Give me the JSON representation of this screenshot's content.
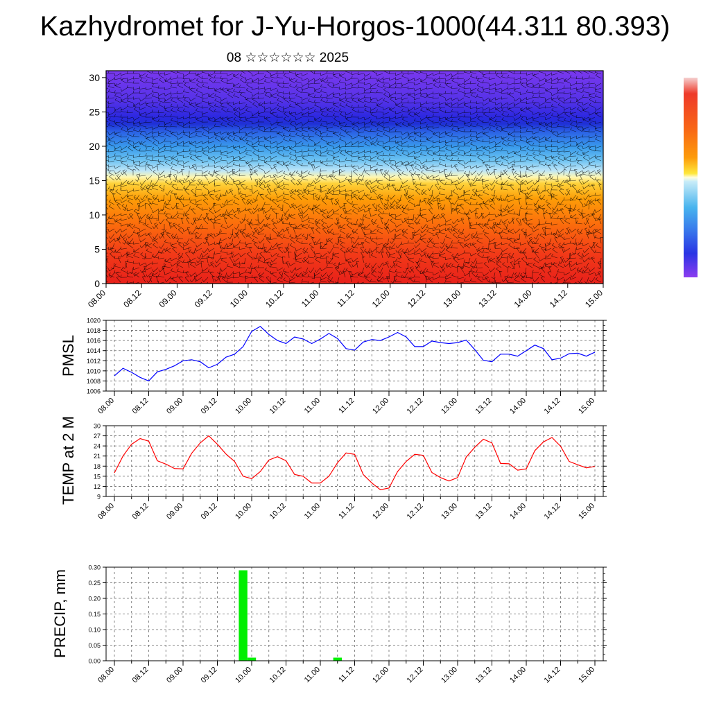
{
  "header": {
    "title": "Kazhydromet for J-Yu-Horgos-1000(44.311 80.393)",
    "subtitle": "08 ☆☆☆☆☆☆ 2025"
  },
  "time_labels": [
    "08.00",
    "08.12",
    "09.00",
    "09.12",
    "10.00",
    "10.12",
    "11.00",
    "11.12",
    "12.00",
    "12.12",
    "13.00",
    "13.12",
    "14.00",
    "14.12",
    "15.00"
  ],
  "colors": {
    "pmsl_line": "#0000ff",
    "temp_line": "#ff0000",
    "precip_bar": "#00ee00",
    "grid": "#666666"
  },
  "chart_data": [
    {
      "type": "heatmap",
      "name": "cross-section",
      "x_ticks": [
        "08.00",
        "08.12",
        "09.00",
        "09.12",
        "10.00",
        "10.12",
        "11.00",
        "11.12",
        "12.00",
        "12.12",
        "13.00",
        "13.12",
        "14.00",
        "14.12",
        "15.00"
      ],
      "y_ticks": [
        0,
        5,
        10,
        15,
        20,
        25,
        30
      ],
      "ylim": [
        0,
        31
      ],
      "colorscale": [
        "#ef2a1c",
        "#fe8a09",
        "#fee040",
        "#a6e0f5",
        "#3aa6ee",
        "#2050ec",
        "#7530f0"
      ],
      "colorbar_position": "right",
      "overlay": "wind barbs"
    },
    {
      "type": "line",
      "name": "pmsl",
      "ylabel": "PMSL",
      "ylim": [
        1006,
        1020
      ],
      "y_ticks": [
        1006,
        1008,
        1010,
        1012,
        1014,
        1016,
        1018,
        1020
      ],
      "x": [
        "08.00",
        "08.03",
        "08.06",
        "08.09",
        "08.12",
        "08.15",
        "08.18",
        "08.21",
        "09.00",
        "09.03",
        "09.06",
        "09.09",
        "09.12",
        "09.15",
        "09.18",
        "09.21",
        "10.00",
        "10.03",
        "10.06",
        "10.09",
        "10.12",
        "10.15",
        "10.18",
        "10.21",
        "11.00",
        "11.03",
        "11.06",
        "11.09",
        "11.12",
        "11.15",
        "11.18",
        "11.21",
        "12.00",
        "12.03",
        "12.06",
        "12.09",
        "12.12",
        "12.15",
        "12.18",
        "12.21",
        "13.00",
        "13.03",
        "13.06",
        "13.09",
        "13.12",
        "13.15",
        "13.18",
        "13.21",
        "14.00",
        "14.03",
        "14.06",
        "14.09",
        "14.12",
        "14.15",
        "14.18",
        "14.21",
        "15.00"
      ],
      "values": [
        1009.0,
        1010.5,
        1009.7,
        1008.7,
        1008.0,
        1009.8,
        1010.3,
        1011.0,
        1012.0,
        1012.2,
        1011.8,
        1010.6,
        1011.3,
        1012.7,
        1013.3,
        1014.8,
        1017.8,
        1018.8,
        1017.2,
        1016.0,
        1015.4,
        1016.7,
        1016.3,
        1015.4,
        1016.3,
        1017.4,
        1016.4,
        1014.4,
        1014.1,
        1015.7,
        1016.2,
        1016.0,
        1016.7,
        1017.6,
        1016.7,
        1014.8,
        1014.8,
        1015.9,
        1015.6,
        1015.4,
        1015.6,
        1016.1,
        1014.2,
        1012.1,
        1011.8,
        1013.3,
        1013.3,
        1012.9,
        1014.0,
        1015.1,
        1014.4,
        1012.2,
        1012.5,
        1013.4,
        1013.5,
        1012.9,
        1013.7
      ]
    },
    {
      "type": "line",
      "name": "temp",
      "ylabel": "TEMP at 2 M",
      "ylim": [
        9,
        30
      ],
      "y_ticks": [
        9,
        12,
        15,
        18,
        21,
        24,
        27,
        30
      ],
      "x": [
        "08.00",
        "08.03",
        "08.06",
        "08.09",
        "08.12",
        "08.15",
        "08.18",
        "08.21",
        "09.00",
        "09.03",
        "09.06",
        "09.09",
        "09.12",
        "09.15",
        "09.18",
        "09.21",
        "10.00",
        "10.03",
        "10.06",
        "10.09",
        "10.12",
        "10.15",
        "10.18",
        "10.21",
        "11.00",
        "11.03",
        "11.06",
        "11.09",
        "11.12",
        "11.15",
        "11.18",
        "11.21",
        "12.00",
        "12.03",
        "12.06",
        "12.09",
        "12.12",
        "12.15",
        "12.18",
        "12.21",
        "13.00",
        "13.03",
        "13.06",
        "13.09",
        "13.12",
        "13.15",
        "13.18",
        "13.21",
        "14.00",
        "14.03",
        "14.06",
        "14.09",
        "14.12",
        "14.15",
        "14.18",
        "14.21",
        "15.00"
      ],
      "values": [
        16.0,
        21.0,
        24.5,
        26.2,
        25.4,
        19.6,
        18.6,
        17.3,
        17.2,
        21.8,
        24.9,
        27.0,
        24.5,
        21.6,
        19.4,
        15.0,
        14.3,
        16.4,
        19.8,
        20.8,
        19.6,
        15.5,
        15.0,
        13.0,
        13.0,
        15.0,
        19.0,
        21.9,
        21.5,
        15.5,
        13.0,
        11.0,
        11.5,
        16.4,
        19.4,
        21.5,
        21.2,
        16.1,
        14.6,
        13.6,
        14.6,
        20.7,
        23.6,
        26.0,
        24.9,
        18.8,
        18.7,
        16.8,
        17.2,
        22.6,
        25.2,
        26.5,
        23.9,
        19.4,
        18.4,
        17.5,
        17.9
      ]
    },
    {
      "type": "bar",
      "name": "precip",
      "ylabel": "PRECIP, mm",
      "ylim": [
        0,
        0.3
      ],
      "y_ticks": [
        "0.00",
        "0.05",
        "0.10",
        "0.15",
        "0.20",
        "0.25",
        "0.30"
      ],
      "x": [
        "09.21",
        "10.00",
        "11.06"
      ],
      "values": [
        0.29,
        0.01,
        0.01
      ]
    }
  ]
}
